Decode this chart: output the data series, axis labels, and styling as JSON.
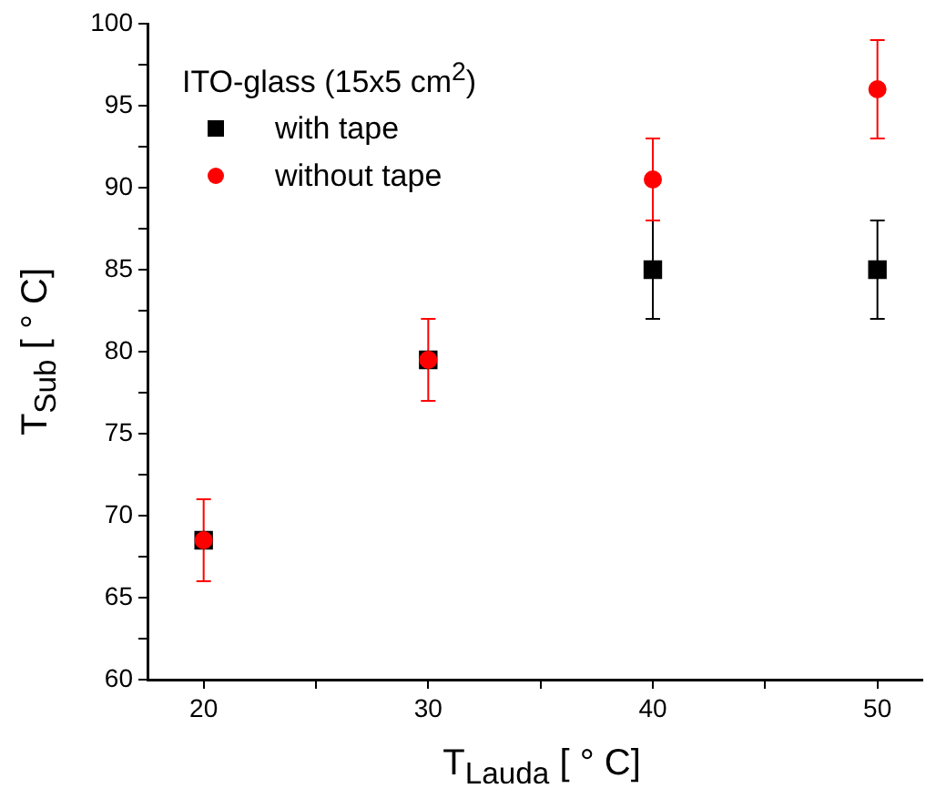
{
  "chart_data": {
    "type": "scatter",
    "xlabel": "T$_{Lauda}$ [ ° C]",
    "ylabel": "T$_{Sub}$ [ ° C]",
    "legend_title": "ITO-glass (15x5 cm$^{2}$)",
    "legend": "top left",
    "x": [
      20,
      30,
      40,
      50
    ],
    "series": [
      {
        "name": "with tape",
        "color": "#000000",
        "marker": "square",
        "values": [
          68.5,
          79.5,
          85,
          85
        ],
        "errors": [
          null,
          null,
          3,
          3
        ]
      },
      {
        "name": "without tape",
        "color": "#ff0000",
        "marker": "circle",
        "values": [
          68.5,
          79.5,
          90.5,
          96
        ],
        "errors": [
          [
            66,
            71
          ],
          [
            77,
            82
          ],
          [
            88,
            93
          ],
          [
            93,
            99
          ]
        ]
      }
    ],
    "xlim": [
      17.5,
      52
    ],
    "xticks": [
      20,
      {
        "value": 25,
        "label": null
      },
      30,
      {
        "value": 35,
        "label": null
      },
      40,
      {
        "value": 45,
        "label": null
      },
      50
    ],
    "ylim": [
      60,
      100
    ],
    "yticks": [
      60,
      {
        "value": 62.5,
        "label": null
      },
      65,
      {
        "value": 67.5,
        "label": null
      },
      70,
      {
        "value": 72.5,
        "label": null
      },
      75,
      {
        "value": 77.5,
        "label": null
      },
      80,
      {
        "value": 82.5,
        "label": null
      },
      85,
      {
        "value": 87.5,
        "label": null
      },
      90,
      {
        "value": 92.5,
        "label": null
      },
      95,
      {
        "value": 97.5,
        "label": null
      },
      100
    ]
  }
}
